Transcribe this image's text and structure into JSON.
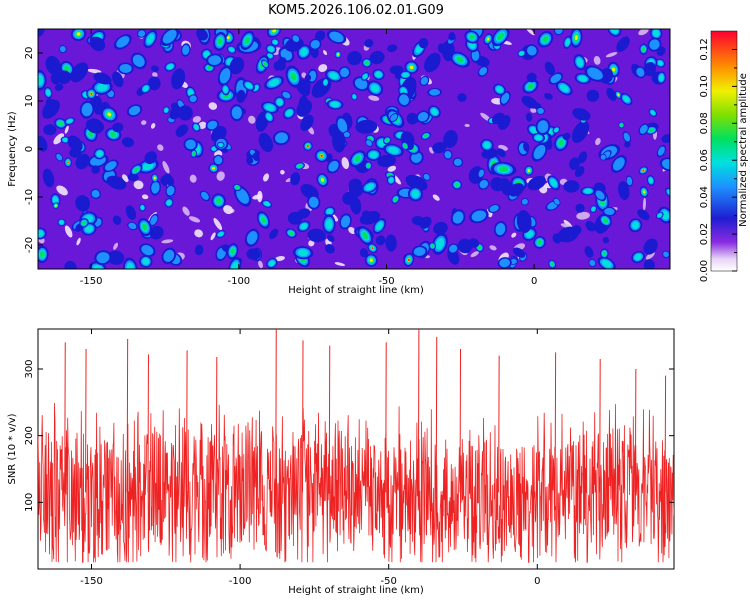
{
  "title": "KOM5.2026.106.02.01.G09",
  "chart_data": [
    {
      "type": "heatmap",
      "xlabel": "Height of straight line (km)",
      "ylabel": "Frequency (Hz)",
      "xlim": [
        -168,
        46
      ],
      "ylim": [
        -25,
        25
      ],
      "xticks": [
        -150,
        -100,
        -50,
        0
      ],
      "yticks": [
        -20,
        -10,
        0,
        10,
        20
      ],
      "colorbar": {
        "label": "Normalized spectral amplitude",
        "range": [
          0.0,
          0.13
        ],
        "ticks": [
          "0.00",
          "0.02",
          "0.04",
          "0.06",
          "0.08",
          "0.10",
          "0.12"
        ]
      },
      "note": "dense field of spectral peaks; values range ~0.00–0.13 across the full domain"
    },
    {
      "type": "line",
      "xlabel": "Height of straight line (km)",
      "ylabel": "SNR (10 * v/v)",
      "xlim": [
        -168,
        46
      ],
      "ylim": [
        0,
        360
      ],
      "xticks": [
        -150,
        -100,
        -50,
        0
      ],
      "yticks": [
        100,
        200,
        300
      ],
      "series": [
        {
          "name": "SNR",
          "color": "#ee2222",
          "mean_level": 115,
          "typical_range": [
            20,
            250
          ],
          "peak_values": [
            {
              "x": -159,
              "y": 340
            },
            {
              "x": -152,
              "y": 330
            },
            {
              "x": -138,
              "y": 345
            },
            {
              "x": -131,
              "y": 322
            },
            {
              "x": -118,
              "y": 328
            },
            {
              "x": -108,
              "y": 318
            },
            {
              "x": -88,
              "y": 360
            },
            {
              "x": -79,
              "y": 343
            },
            {
              "x": -70,
              "y": 335
            },
            {
              "x": -51,
              "y": 340
            },
            {
              "x": -40,
              "y": 360
            },
            {
              "x": -34,
              "y": 348
            },
            {
              "x": -26,
              "y": 330
            },
            {
              "x": -13,
              "y": 320
            },
            {
              "x": 6,
              "y": 325
            },
            {
              "x": 21,
              "y": 315
            },
            {
              "x": 33,
              "y": 300
            },
            {
              "x": 43,
              "y": 290
            }
          ]
        }
      ]
    }
  ]
}
